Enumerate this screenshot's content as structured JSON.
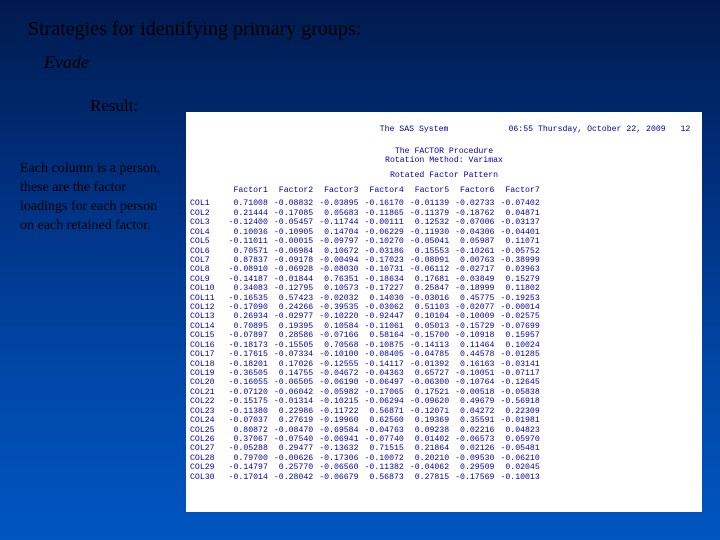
{
  "title": "Strategies for identifying primary groups:",
  "subtitle": "Evade",
  "result_label": "Result:",
  "explain_text": "Each column is a person, these are the factor loadings for each person on each retained factor.",
  "sas": {
    "system_label": "The SAS System",
    "timestamp": "06:55 Thursday, October 22, 2009",
    "page_num": "12",
    "proc_line1": "The FACTOR Procedure",
    "proc_line2": "Rotation Method: Varimax",
    "pattern_title": "Rotated Factor Pattern",
    "columns": [
      "",
      "Factor1",
      "Factor2",
      "Factor3",
      "Factor4",
      "Factor5",
      "Factor6",
      "Factor7"
    ],
    "rows": [
      [
        "COL1",
        "0.71008",
        "-0.08832",
        "-0.03895",
        "-0.16170",
        "-0.01139",
        "-0.02733",
        "-0.07402"
      ],
      [
        "COL2",
        "0.21444",
        "-0.17085",
        " 0.05683",
        "-0.11865",
        "-0.11379",
        "-0.18762",
        " 0.04871"
      ],
      [
        "COL3",
        "-0.12400",
        "-0.05457",
        "-0.11744",
        "-0.00111",
        " 0.12532",
        "-0.07006",
        "-0.03137"
      ],
      [
        "COL4",
        "0.10036",
        "-0.10905",
        " 0.14704",
        "-0.06229",
        "-0.11930",
        "-0.04306",
        "-0.04401"
      ],
      [
        "COL5",
        "-0.11011",
        "-0.00015",
        "-0.09797",
        "-0.10270",
        "-0.05041",
        " 0.05987",
        " 0.11071"
      ],
      [
        "COL6",
        "0.70571",
        "-0.06984",
        " 0.10672",
        "-0.03186",
        " 0.15553",
        "-0.10261",
        "-0.05752"
      ],
      [
        "COL7",
        "0.87837",
        "-0.09178",
        "-0.00494",
        "-0.17023",
        "-0.08091",
        " 0.00763",
        "-0.38999"
      ],
      [
        "COL8",
        "-0.08910",
        "-0.06928",
        "-0.08030",
        "-0.10731",
        "-0.06112",
        "-0.02717",
        " 0.03963"
      ],
      [
        "COL9",
        "-0.14187",
        "-0.01844",
        " 0.76351",
        "-0.18634",
        " 0.17681",
        "-0.03849",
        " 0.15279"
      ],
      [
        "COL10",
        "0.34083",
        "-0.12795",
        " 0.10573",
        "-0.17227",
        " 0.25847",
        "-0.18999",
        " 0.11802"
      ],
      [
        "COL11",
        "-0.16535",
        " 0.57423",
        "-0.02032",
        " 0.14030",
        "-0.03016",
        " 0.45775",
        "-0.19253"
      ],
      [
        "COL12",
        "-0.17090",
        " 0.24266",
        "-0.39535",
        "-0.03062",
        " 0.51103",
        "-0.02077",
        "-0.00014"
      ],
      [
        "COL13",
        "0.26934",
        "-0.02977",
        "-0.10220",
        "-0.92447",
        " 0.10104",
        "-0.10009",
        "-0.02575"
      ],
      [
        "COL14",
        "0.70895",
        " 0.19395",
        " 0.10584",
        "-0.11061",
        " 0.05013",
        "-0.15729",
        "-0.07699"
      ],
      [
        "COL15",
        "-0.07897",
        " 0.28586",
        "-0.07166",
        " 0.58164",
        "-0.15700",
        "-0.10918",
        " 0.15957"
      ],
      [
        "COL16",
        "-0.18173",
        "-0.15505",
        " 0.70568",
        "-0.10875",
        "-0.14113",
        " 0.11464",
        " 0.10024"
      ],
      [
        "COL17",
        "-0.17615",
        "-0.07334",
        "-0.10100",
        "-0.08405",
        "-0.04785",
        " 0.44578",
        "-0.01285"
      ],
      [
        "COL18",
        "-0.18201",
        " 0.17026",
        "-0.12555",
        "-0.14117",
        "-0.01392",
        " 0.16163",
        "-0.03141"
      ],
      [
        "COL19",
        "-0.36505",
        " 0.14755",
        "-0.04672",
        "-0.04363",
        " 0.65727",
        "-0.10051",
        "-0.07117"
      ],
      [
        "COL20",
        "-0.16055",
        "-0.06505",
        "-0.06190",
        "-0.06497",
        "-0.06300",
        "-0.10764",
        "-0.12645"
      ],
      [
        "COL21",
        "-0.07120",
        "-0.06042",
        "-0.05982",
        "-0.17065",
        " 0.17521",
        "-0.00518",
        "-0.05838"
      ],
      [
        "COL22",
        "-0.15175",
        "-0.01314",
        "-0.10215",
        "-0.06294",
        "-0.09620",
        " 0.49679",
        "-0.56918"
      ],
      [
        "COL23",
        "-0.11380",
        " 0.22986",
        "-0.11722",
        " 0.56871",
        "-0.12071",
        " 0.04272",
        " 0.22309"
      ],
      [
        "COL24",
        "-0.07037",
        " 0.27619",
        "-0.19960",
        " 0.62560",
        " 0.19369",
        " 0.35591",
        "-0.01981"
      ],
      [
        "COL25",
        "0.80872",
        "-0.08470",
        "-0.69584",
        "-0.04763",
        " 0.09238",
        " 0.02216",
        " 0.04823"
      ],
      [
        "COL26",
        "0.37067",
        "-0.07540",
        "-0.06941",
        "-0.07740",
        " 0.01402",
        "-0.06573",
        " 0.05970"
      ],
      [
        "COL27",
        "-0.05288",
        " 0.29477",
        "-0.13632",
        " 0.71515",
        " 0.21864",
        " 0.02126",
        "-0.05481"
      ],
      [
        "COL28",
        "0.79700",
        "-0.00626",
        "-0.17306",
        "-0.10072",
        " 0.20210",
        "-0.09530",
        "-0.06210"
      ],
      [
        "COL29",
        "-0.14797",
        " 0.25770",
        "-0.06560",
        "-0.11382",
        "-0.04062",
        " 0.29509",
        " 0.02045"
      ],
      [
        "COL30",
        "-0.17014",
        "-0.28042",
        "-0.06679",
        " 0.56873",
        " 0.27815",
        "-0.17569",
        "-0.10013"
      ]
    ]
  }
}
